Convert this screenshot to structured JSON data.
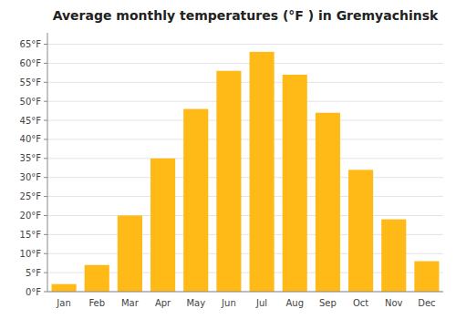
{
  "chart_data": {
    "type": "bar",
    "title": "Average monthly temperatures (°F ) in Gremyachinsk",
    "categories": [
      "Jan",
      "Feb",
      "Mar",
      "Apr",
      "May",
      "Jun",
      "Jul",
      "Aug",
      "Sep",
      "Oct",
      "Nov",
      "Dec"
    ],
    "values": [
      2,
      7,
      20,
      35,
      48,
      58,
      63,
      57,
      47,
      32,
      19,
      8
    ],
    "color": "#FFBA18",
    "ylim": [
      0,
      68
    ],
    "yticks": [
      {
        "value": 0,
        "label": "0°F"
      },
      {
        "value": 5,
        "label": "5°F"
      },
      {
        "value": 10,
        "label": "10°F"
      },
      {
        "value": 15,
        "label": "15°F"
      },
      {
        "value": 20,
        "label": "20°F"
      },
      {
        "value": 25,
        "label": "25°F"
      },
      {
        "value": 30,
        "label": "30°F"
      },
      {
        "value": 35,
        "label": "35°F"
      },
      {
        "value": 40,
        "label": "40°F"
      },
      {
        "value": 45,
        "label": "45°F"
      },
      {
        "value": 50,
        "label": "50°F"
      },
      {
        "value": 55,
        "label": "55°F"
      },
      {
        "value": 60,
        "label": "60°F"
      },
      {
        "value": 65,
        "label": "65°F"
      }
    ],
    "grid": true
  }
}
